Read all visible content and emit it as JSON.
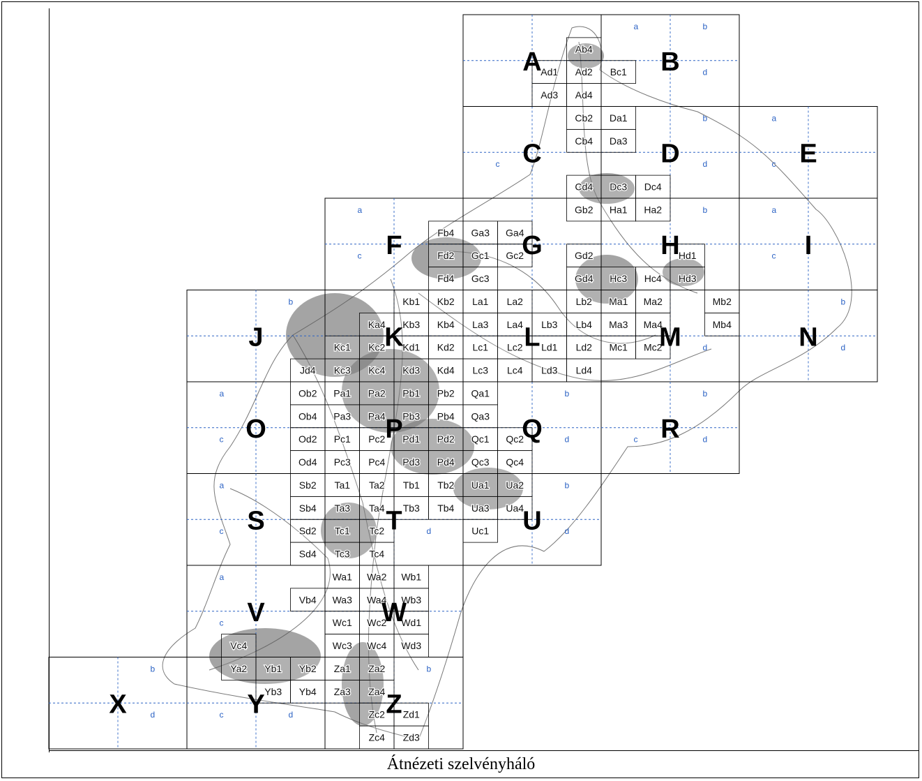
{
  "caption": "Átnézeti szelvényháló",
  "colors": {
    "grid": "#000000",
    "quadrant": "#2b62c4",
    "background": "#ffffff"
  },
  "sheets": [
    {
      "id": "A",
      "quadrants": []
    },
    {
      "id": "B",
      "quadrants": [
        "a",
        "b",
        "d"
      ]
    },
    {
      "id": "C",
      "quadrants": [
        "c"
      ]
    },
    {
      "id": "D",
      "quadrants": [
        "b",
        "d"
      ]
    },
    {
      "id": "E",
      "quadrants": [
        "a",
        "c"
      ]
    },
    {
      "id": "F",
      "quadrants": [
        "a",
        "c"
      ]
    },
    {
      "id": "G",
      "quadrants": []
    },
    {
      "id": "H",
      "quadrants": [
        "b"
      ]
    },
    {
      "id": "I",
      "quadrants": [
        "a",
        "c"
      ]
    },
    {
      "id": "J",
      "quadrants": [
        "b"
      ]
    },
    {
      "id": "K",
      "quadrants": []
    },
    {
      "id": "L",
      "quadrants": []
    },
    {
      "id": "M",
      "quadrants": [
        "d"
      ]
    },
    {
      "id": "N",
      "quadrants": [
        "b",
        "d"
      ]
    },
    {
      "id": "O",
      "quadrants": [
        "a",
        "c"
      ]
    },
    {
      "id": "P",
      "quadrants": []
    },
    {
      "id": "Q",
      "quadrants": [
        "b",
        "d"
      ]
    },
    {
      "id": "R",
      "quadrants": [
        "b",
        "c",
        "d"
      ]
    },
    {
      "id": "S",
      "quadrants": [
        "a",
        "c"
      ]
    },
    {
      "id": "T",
      "quadrants": [
        "d"
      ]
    },
    {
      "id": "U",
      "quadrants": [
        "b",
        "d"
      ]
    },
    {
      "id": "V",
      "quadrants": [
        "a",
        "c"
      ]
    },
    {
      "id": "W",
      "quadrants": []
    },
    {
      "id": "X",
      "quadrants": [
        "b",
        "d"
      ]
    },
    {
      "id": "Y",
      "quadrants": [
        "c",
        "d"
      ]
    },
    {
      "id": "Z",
      "quadrants": [
        "b"
      ]
    }
  ],
  "subsheets": [
    "Ab4",
    "Ad1",
    "Ad2",
    "Bc1",
    "Ad3",
    "Ad4",
    "Cb2",
    "Da1",
    "Cb4",
    "Da3",
    "Cd4",
    "Dc3",
    "Dc4",
    "Gb2",
    "Ha1",
    "Ha2",
    "Fb4",
    "Ga3",
    "Ga4",
    "Fd2",
    "Gc1",
    "Gc2",
    "Gd2",
    "Hd1",
    "Fd4",
    "Gc3",
    "Gd4",
    "Hc3",
    "Hc4",
    "Hd3",
    "Kb1",
    "Kb2",
    "La1",
    "La2",
    "Lb2",
    "Ma1",
    "Ma2",
    "Mb2",
    "Ka4",
    "Kb3",
    "Kb4",
    "La3",
    "La4",
    "Lb3",
    "Lb4",
    "Ma3",
    "Ma4",
    "Mb4",
    "Kc1",
    "Kc2",
    "Kd1",
    "Kd2",
    "Lc1",
    "Lc2",
    "Ld1",
    "Ld2",
    "Mc1",
    "Mc2",
    "Jd4",
    "Kc3",
    "Kc4",
    "Kd3",
    "Kd4",
    "Lc3",
    "Lc4",
    "Ld3",
    "Ld4",
    "Ob2",
    "Pa1",
    "Pa2",
    "Pb1",
    "Pb2",
    "Qa1",
    "Ob4",
    "Pa3",
    "Pa4",
    "Pb3",
    "Pb4",
    "Qa3",
    "Od2",
    "Pc1",
    "Pc2",
    "Pd1",
    "Pd2",
    "Qc1",
    "Qc2",
    "Od4",
    "Pc3",
    "Pc4",
    "Pd3",
    "Pd4",
    "Qc3",
    "Qc4",
    "Sb2",
    "Ta1",
    "Ta2",
    "Tb1",
    "Tb2",
    "Ua1",
    "Ua2",
    "Sb4",
    "Ta3",
    "Ta4",
    "Tb3",
    "Tb4",
    "Ua3",
    "Ua4",
    "Sd2",
    "Tc1",
    "Tc2",
    "Uc1",
    "Sd4",
    "Tc3",
    "Tc4",
    "Wa1",
    "Wa2",
    "Wb1",
    "Vb4",
    "Wa3",
    "Wa4",
    "Wb3",
    "Wc1",
    "Wc2",
    "Wd1",
    "Vc4",
    "Wc3",
    "Wc4",
    "Wd3",
    "Ya2",
    "Yb1",
    "Yb2",
    "Za1",
    "Za2",
    "Yb3",
    "Yb4",
    "Za3",
    "Za4",
    "Zc2",
    "Zd1",
    "Zc4",
    "Zd3"
  ]
}
